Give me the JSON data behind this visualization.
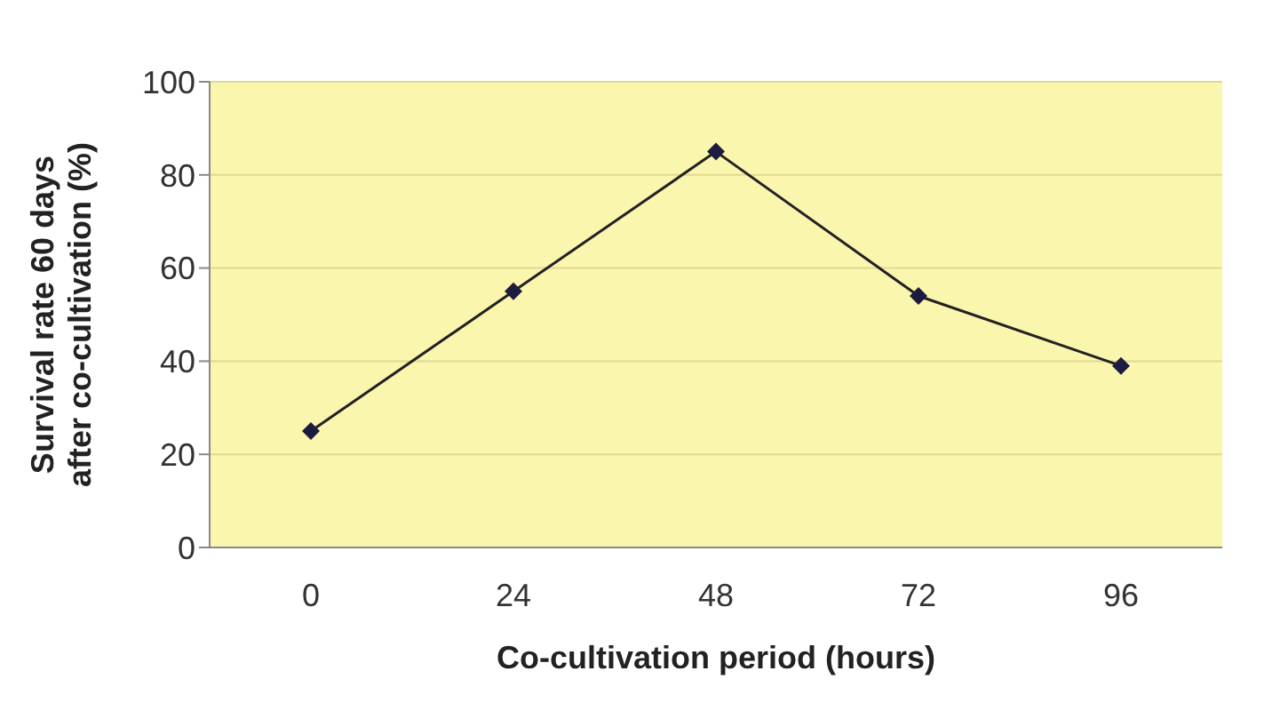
{
  "chart_data": {
    "type": "line",
    "categories": [
      "0",
      "24",
      "48",
      "72",
      "96"
    ],
    "series": [
      {
        "color": "#1c1c40",
        "values": [
          25,
          55,
          85,
          54,
          39
        ]
      }
    ],
    "xlabel": "Co-cultivation period (hours)",
    "ylabel": "Survival rate 60 days after co-cultivation (%)",
    "ylim": [
      0,
      100
    ],
    "yticks": [
      0,
      20,
      40,
      60,
      80,
      100
    ],
    "grid": "y",
    "marker": "diamond",
    "line_style": "solid"
  }
}
